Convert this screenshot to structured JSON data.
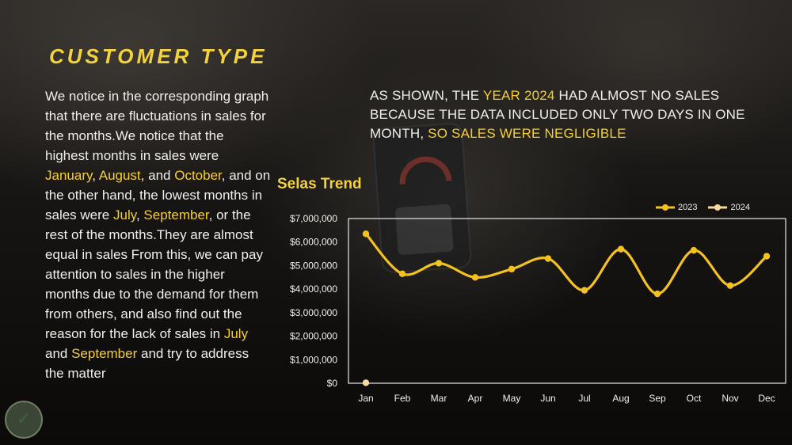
{
  "title": "CUSTOMER TYPE",
  "body": {
    "seg1": "We notice in the corresponding graph that there are fluctuations in sales for the months.We notice that the highest months in sales were ",
    "jan": "January",
    "c1": ", ",
    "aug": "August",
    "c2": ", and ",
    "oct": "October",
    "seg2": ", and on the other hand, the lowest months in sales were ",
    "jul": "July",
    "c3": ", ",
    "sep": "September",
    "seg3": ", or the rest of the months.They are almost equal in sales From this, we can pay attention to sales in the higher months due to the demand for them from others, and also find out the reason for the lack of sales in ",
    "jul2": "July",
    "c4": " and ",
    "sep2": "September",
    "seg4": " and try to address the matter"
  },
  "note": {
    "p1": "AS SHOWN, THE ",
    "hl1": "YEAR 2024",
    "p2": " HAD ALMOST NO SALES BECAUSE THE DATA INCLUDED ONLY TWO DAYS IN ONE MONTH, ",
    "hl2": "SO SALES WERE NEGLIGIBLE"
  },
  "colors": {
    "series_2023": "#f4c21f",
    "series_2024": "#f5d9a0",
    "axis_text": "#f1efe9",
    "plot_border": "#e8e8e8"
  },
  "logo_icon": "checkmark-shield-logo",
  "chart_data": {
    "type": "line",
    "title": "Selas Trend",
    "xlabel": "",
    "ylabel": "",
    "categories": [
      "Jan",
      "Feb",
      "Mar",
      "Apr",
      "May",
      "Jun",
      "Jul",
      "Aug",
      "Sep",
      "Oct",
      "Nov",
      "Dec"
    ],
    "series": [
      {
        "name": "2023",
        "values": [
          6350000,
          4650000,
          5100000,
          4500000,
          4850000,
          5300000,
          3950000,
          5700000,
          3800000,
          5650000,
          4150000,
          5400000
        ]
      },
      {
        "name": "2024",
        "values": [
          20000,
          null,
          null,
          null,
          null,
          null,
          null,
          null,
          null,
          null,
          null,
          null
        ]
      }
    ],
    "ylim": [
      0,
      7000000
    ],
    "yticks": [
      "$0",
      "$1,000,000",
      "$2,000,000",
      "$3,000,000",
      "$4,000,000",
      "$5,000,000",
      "$6,000,000",
      "$7,000,000"
    ],
    "grid": false,
    "legend": "top-right",
    "smooth": true
  }
}
